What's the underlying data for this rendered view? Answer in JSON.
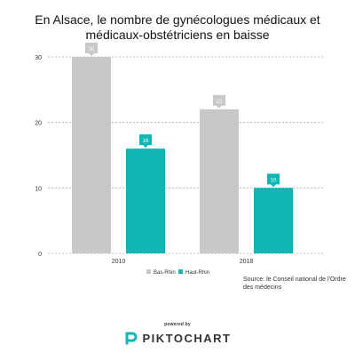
{
  "title": "En Alsace, le nombre de gynécologues médicaux et médicaux-obstétriciens en baisse",
  "source_text": "Source: le Conseil national de l'Ordre des médecins",
  "footer": {
    "powered_by": "powered by",
    "brand": "PIKTOCHART"
  },
  "colors": {
    "bas_rhin": "#c8c8c8",
    "haut_rhin": "#12b5b5",
    "grid": "#aaaaaa"
  },
  "chart_data": {
    "type": "bar",
    "categories": [
      "2010",
      "2018"
    ],
    "series": [
      {
        "name": "Bas-Rhin",
        "values": [
          30,
          22
        ]
      },
      {
        "name": "Haut-Rhin",
        "values": [
          16,
          10
        ]
      }
    ],
    "yticks": [
      0,
      10,
      20,
      30
    ],
    "ylim": [
      0,
      30
    ],
    "grid": true,
    "legend": "bottom-center"
  }
}
